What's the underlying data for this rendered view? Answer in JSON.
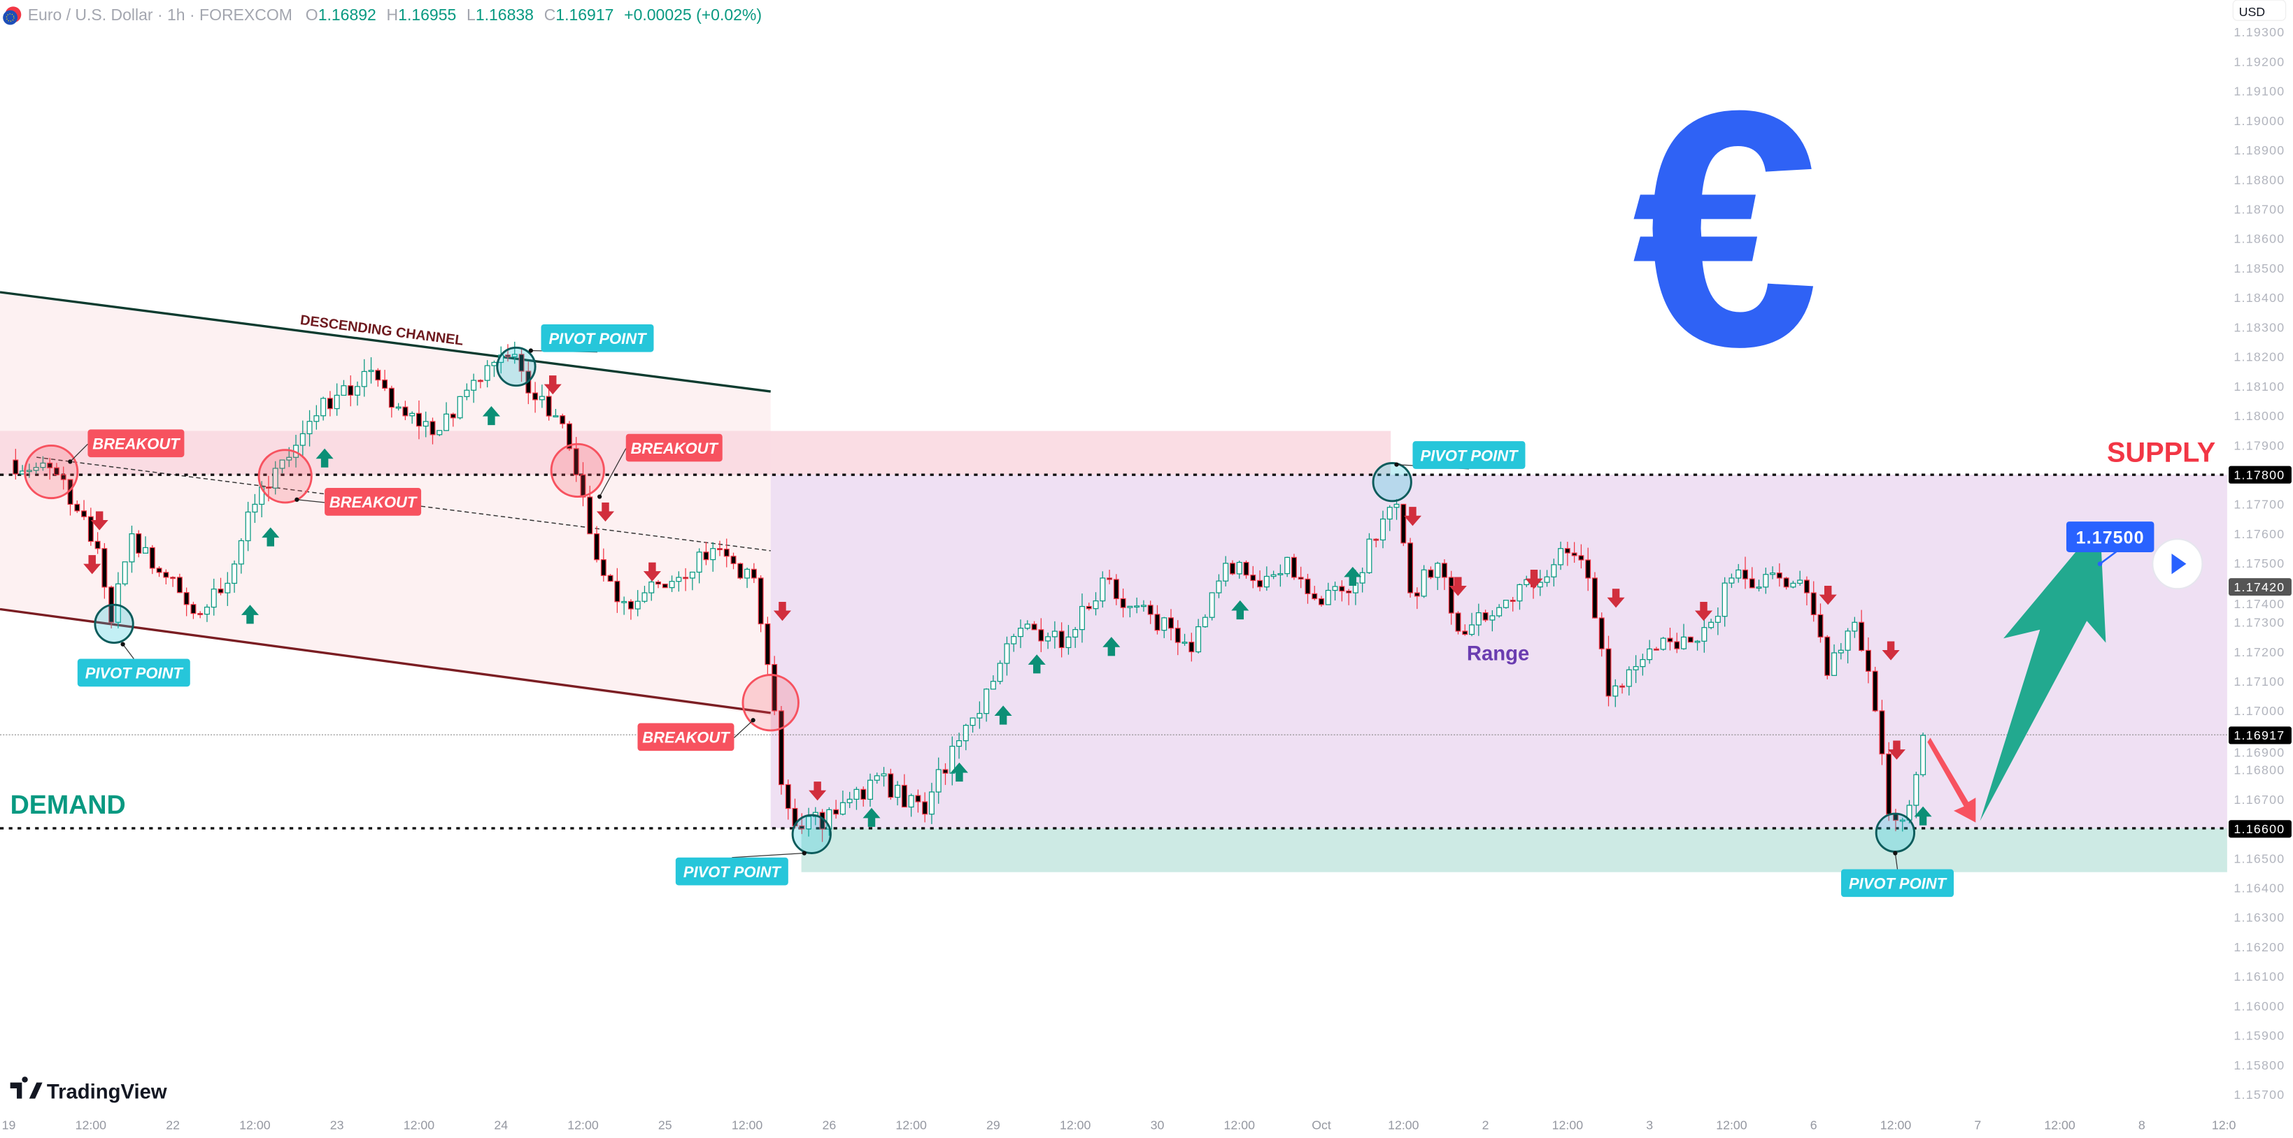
{
  "header": {
    "symbol": "Euro / U.S. Dollar",
    "interval": "1h",
    "exchange": "FOREXCOM",
    "open_label": "O",
    "open": "1.16892",
    "high_label": "H",
    "high": "1.16955",
    "low_label": "L",
    "low": "1.16838",
    "close_label": "C",
    "close": "1.16917",
    "change": "+0.00025 (+0.02%)",
    "flag_icon": "eu-us-flag-icon"
  },
  "currency_button": "USD",
  "logo": "TradingView",
  "colors": {
    "up": "#089981",
    "down": "#f23645",
    "breakout": "#f7525f",
    "pivot": "#26c6da",
    "euro": "#2f62f5",
    "range": "#efe0f3",
    "demand": "#cdeae4",
    "supply_band": "#f9d9e1",
    "channel": "#fdf1f2"
  },
  "annotations": {
    "descending_channel": "DESCENDING CHANNEL",
    "breakout": "BREAKOUT",
    "pivot_point": "PIVOT POINT",
    "supply": "SUPPLY",
    "demand": "DEMAND",
    "range": "Range",
    "target": "1.17500",
    "euro_symbol": "€"
  },
  "chart_data": {
    "type": "candlestick",
    "symbol": "EURUSD",
    "timeframe": "1h",
    "ylim": [
      1.157,
      1.193
    ],
    "y_ticks": [
      "1.19300",
      "1.19200",
      "1.19100",
      "1.19000",
      "1.18900",
      "1.18800",
      "1.18700",
      "1.18600",
      "1.18500",
      "1.18400",
      "1.18300",
      "1.18200",
      "1.18100",
      "1.18000",
      "1.17900",
      "1.17800",
      "1.17700",
      "1.17600",
      "1.17500",
      "1.17400",
      "1.17300",
      "1.17200",
      "1.17100",
      "1.17000",
      "1.16900",
      "1.16800",
      "1.16700",
      "1.16600",
      "1.16500",
      "1.16400",
      "1.16300",
      "1.16200",
      "1.16100",
      "1.16000",
      "1.15900",
      "1.15800",
      "1.15700"
    ],
    "x_ticks": [
      "19",
      "12:00",
      "22",
      "12:00",
      "23",
      "12:00",
      "24",
      "12:00",
      "25",
      "12:00",
      "26",
      "12:00",
      "29",
      "12:00",
      "30",
      "12:00",
      "Oct",
      "12:00",
      "2",
      "12:00",
      "3",
      "12:00",
      "6",
      "12:00",
      "7",
      "12:00",
      "8",
      "12:0"
    ],
    "price_tags": [
      {
        "value": "1.17800",
        "style": "black"
      },
      {
        "value": "1.17420",
        "style": "gray"
      },
      {
        "value": "1.16917",
        "style": "black"
      },
      {
        "value": "1.16600",
        "style": "black"
      }
    ],
    "levels": {
      "supply": 1.178,
      "demand": 1.166,
      "last": 1.16917,
      "target": 1.175
    },
    "close_path": [
      [
        "Sep 19 00:00",
        1.1785
      ],
      [
        "Sep 19 07:00",
        1.178
      ],
      [
        "Sep 19 09:00",
        1.177
      ],
      [
        "Sep 19 13:00",
        1.1755
      ],
      [
        "Sep 19 15:00",
        1.173
      ],
      [
        "Sep 19 18:00",
        1.176
      ],
      [
        "Sep 22 03:00",
        1.1733
      ],
      [
        "Sep 22 07:00",
        1.174
      ],
      [
        "Sep 22 12:00",
        1.177
      ],
      [
        "Sep 22 16:00",
        1.1785
      ],
      [
        "Sep 22 21:00",
        1.18
      ],
      [
        "Sep 23 04:00",
        1.1815
      ],
      [
        "Sep 23 10:00",
        1.18
      ],
      [
        "Sep 23 15:00",
        1.1795
      ],
      [
        "Sep 23 20:00",
        1.1812
      ],
      [
        "Sep 24 01:00",
        1.182
      ],
      [
        "Sep 24 08:00",
        1.18
      ],
      [
        "Sep 24 11:00",
        1.178
      ],
      [
        "Sep 24 13:00",
        1.176
      ],
      [
        "Sep 24 17:00",
        1.1737
      ],
      [
        "Sep 24 21:00",
        1.174
      ],
      [
        "Sep 25 03:00",
        1.1745
      ],
      [
        "Sep 25 07:00",
        1.1755
      ],
      [
        "Sep 25 11:00",
        1.1745
      ],
      [
        "Sep 25 13:00",
        1.1745
      ],
      [
        "Sep 25 16:00",
        1.17
      ],
      [
        "Sep 25 17:00",
        1.1675
      ],
      [
        "Sep 25 20:00",
        1.166
      ],
      [
        "Sep 26 01:00",
        1.1665
      ],
      [
        "Sep 26 07:00",
        1.1678
      ],
      [
        "Sep 26 14:00",
        1.1665
      ],
      [
        "Sep 26 18:00",
        1.1688
      ],
      [
        "Sep 29 00:00",
        1.171
      ],
      [
        "Sep 29 04:00",
        1.1728
      ],
      [
        "Sep 29 11:00",
        1.1725
      ],
      [
        "Sep 29 16:00",
        1.1745
      ],
      [
        "Sep 29 19:00",
        1.1735
      ],
      [
        "Sep 30 02:00",
        1.1728
      ],
      [
        "Sep 30 05:00",
        1.172
      ],
      [
        "Sep 30 10:00",
        1.175
      ],
      [
        "Sep 30 15:00",
        1.1742
      ],
      [
        "Sep 30 19:00",
        1.1752
      ],
      [
        "Sep 30 23:00",
        1.1738
      ],
      [
        "Oct 1 04:00",
        1.174
      ],
      [
        "Oct 1 09:00",
        1.1765
      ],
      [
        "Oct 1 11:00",
        1.177
      ],
      [
        "Oct 1 13:00",
        1.174
      ],
      [
        "Oct 1 17:00",
        1.175
      ],
      [
        "Oct 1 20:00",
        1.1727
      ],
      [
        "Oct 2 02:00",
        1.1735
      ],
      [
        "Oct 2 07:00",
        1.1742
      ],
      [
        "Oct 2 11:00",
        1.1755
      ],
      [
        "Oct 2 15:00",
        1.1745
      ],
      [
        "Oct 2 18:00",
        1.1705
      ],
      [
        "Oct 2 22:00",
        1.1715
      ],
      [
        "Oct 3 05:00",
        1.1725
      ],
      [
        "Oct 3 09:00",
        1.173
      ],
      [
        "Oct 3 12:00",
        1.1745
      ],
      [
        "Oct 3 19:00",
        1.1745
      ],
      [
        "Oct 3 23:00",
        1.174
      ],
      [
        "Oct 6 02:00",
        1.1712
      ],
      [
        "Oct 6 06:00",
        1.173
      ],
      [
        "Oct 6 09:00",
        1.17
      ],
      [
        "Oct 6 11:00",
        1.1665
      ],
      [
        "Oct 6 13:00",
        1.1663
      ],
      [
        "Oct 6 14:00",
        1.1668
      ],
      [
        "Oct 6 16:00",
        1.16917
      ]
    ]
  }
}
